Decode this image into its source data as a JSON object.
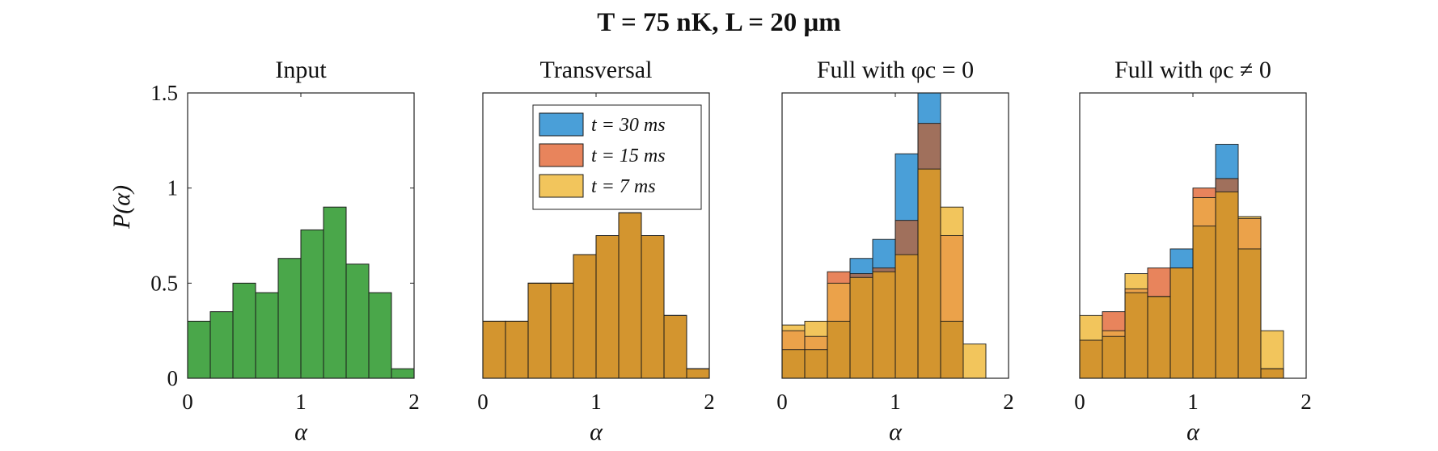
{
  "figure": {
    "title": "T = 75 nK,  L = 20 μm",
    "ylabel": "P(α)",
    "xlabel": "α"
  },
  "colors": {
    "input": "#4aa74a",
    "t30": "#4a9fd8",
    "t15": "#e8845c",
    "t7": "#f2c55c",
    "overlap": "#d3952f",
    "edge": "#1a1a1a"
  },
  "legend": [
    {
      "key": "t30",
      "label": "t = 30 ms"
    },
    {
      "key": "t15",
      "label": "t = 15 ms"
    },
    {
      "key": "t7",
      "label": "t = 7 ms"
    }
  ],
  "chart_data": [
    {
      "type": "bar",
      "title": "Input",
      "xlabel": "α",
      "ylabel": "P(α)",
      "xlim": [
        0,
        2
      ],
      "ylim": [
        0,
        1.5
      ],
      "xticks": [
        "0",
        "1",
        "2"
      ],
      "yticks": [
        "0",
        "0.5",
        "1",
        "1.5"
      ],
      "bin_edges": [
        0,
        0.2,
        0.4,
        0.6,
        0.8,
        1.0,
        1.2,
        1.4,
        1.6,
        1.8,
        2.0
      ],
      "series": [
        {
          "key": "input",
          "values": [
            0.3,
            0.35,
            0.5,
            0.45,
            0.63,
            0.78,
            0.9,
            0.6,
            0.45,
            0.05
          ]
        }
      ]
    },
    {
      "type": "bar",
      "title": "Transversal",
      "xlabel": "α",
      "xlim": [
        0,
        2
      ],
      "ylim": [
        0,
        1.5
      ],
      "xticks": [
        "0",
        "1",
        "2"
      ],
      "bin_edges": [
        0,
        0.2,
        0.4,
        0.6,
        0.8,
        1.0,
        1.2,
        1.4,
        1.6,
        1.8,
        2.0
      ],
      "legend": "top-right",
      "series": [
        {
          "key": "t30",
          "name": "t = 30 ms",
          "values": [
            0.3,
            0.3,
            0.5,
            0.5,
            0.65,
            0.75,
            0.87,
            0.75,
            0.33,
            0.05
          ]
        },
        {
          "key": "t15",
          "name": "t = 15 ms",
          "values": [
            0.3,
            0.3,
            0.5,
            0.5,
            0.65,
            0.75,
            0.87,
            0.75,
            0.33,
            0.05
          ]
        },
        {
          "key": "t7",
          "name": "t = 7 ms",
          "values": [
            0.3,
            0.3,
            0.5,
            0.5,
            0.65,
            0.75,
            0.87,
            0.75,
            0.33,
            0.05
          ]
        }
      ]
    },
    {
      "type": "bar",
      "title": "Full with φc = 0",
      "xlabel": "α",
      "xlim": [
        0,
        2
      ],
      "ylim": [
        0,
        1.5
      ],
      "xticks": [
        "0",
        "1",
        "2"
      ],
      "bin_edges": [
        0,
        0.2,
        0.4,
        0.6,
        0.8,
        1.0,
        1.2,
        1.4,
        1.6,
        1.8,
        2.0
      ],
      "series": [
        {
          "key": "t30",
          "name": "t = 30 ms",
          "values": [
            0.15,
            0.15,
            0.3,
            0.63,
            0.73,
            1.18,
            1.55,
            0.3,
            0.0,
            0.0
          ]
        },
        {
          "key": "t15",
          "name": "t = 15 ms",
          "values": [
            0.25,
            0.22,
            0.56,
            0.55,
            0.58,
            0.83,
            1.34,
            0.75,
            0.0,
            0.0
          ]
        },
        {
          "key": "t7",
          "name": "t = 7 ms",
          "values": [
            0.28,
            0.3,
            0.5,
            0.53,
            0.56,
            0.65,
            1.1,
            0.9,
            0.18,
            0.0
          ]
        }
      ]
    },
    {
      "type": "bar",
      "title": "Full with φc ≠ 0",
      "xlabel": "α",
      "xlim": [
        0,
        2
      ],
      "ylim": [
        0,
        1.5
      ],
      "xticks": [
        "0",
        "1",
        "2"
      ],
      "bin_edges": [
        0,
        0.2,
        0.4,
        0.6,
        0.8,
        1.0,
        1.2,
        1.4,
        1.6,
        1.8,
        2.0
      ],
      "series": [
        {
          "key": "t30",
          "name": "t = 30 ms",
          "values": [
            0.2,
            0.22,
            0.45,
            0.43,
            0.68,
            0.8,
            1.23,
            0.68,
            0.05,
            0.0
          ]
        },
        {
          "key": "t15",
          "name": "t = 15 ms",
          "values": [
            0.2,
            0.35,
            0.47,
            0.58,
            0.58,
            1.0,
            1.05,
            0.84,
            0.05,
            0.0
          ]
        },
        {
          "key": "t7",
          "name": "t = 7 ms",
          "values": [
            0.33,
            0.25,
            0.55,
            0.43,
            0.58,
            0.95,
            0.98,
            0.85,
            0.25,
            0.0
          ]
        }
      ]
    }
  ]
}
